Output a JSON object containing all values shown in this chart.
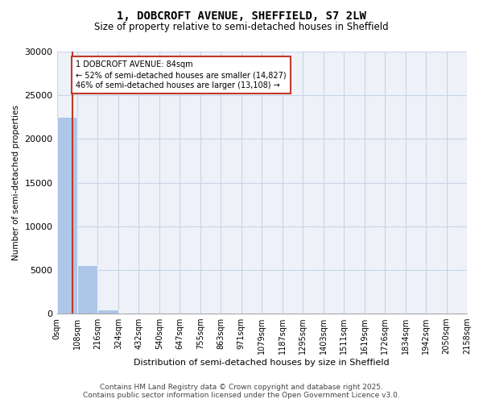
{
  "title_line1": "1, DOBCROFT AVENUE, SHEFFIELD, S7 2LW",
  "title_line2": "Size of property relative to semi-detached houses in Sheffield",
  "xlabel": "Distribution of semi-detached houses by size in Sheffield",
  "ylabel": "Number of semi-detached properties",
  "bar_color": "#aec6e8",
  "marker_color": "#c0392b",
  "annotation_text": "1 DOBCROFT AVENUE: 84sqm\n← 52% of semi-detached houses are smaller (14,827)\n46% of semi-detached houses are larger (13,108) →",
  "property_size_sqm": 84,
  "bin_width": 108,
  "bin_labels": [
    "0sqm",
    "108sqm",
    "216sqm",
    "324sqm",
    "432sqm",
    "540sqm",
    "647sqm",
    "755sqm",
    "863sqm",
    "971sqm",
    "1079sqm",
    "1187sqm",
    "1295sqm",
    "1403sqm",
    "1511sqm",
    "1619sqm",
    "1726sqm",
    "1834sqm",
    "1942sqm",
    "2050sqm",
    "2158sqm"
  ],
  "counts": [
    22500,
    5500,
    500,
    50,
    10,
    5,
    3,
    2,
    1,
    1,
    1,
    1,
    1,
    1,
    1,
    1,
    1,
    1,
    1,
    1
  ],
  "ylim": [
    0,
    30000
  ],
  "yticks": [
    0,
    5000,
    10000,
    15000,
    20000,
    25000,
    30000
  ],
  "footer_text": "Contains HM Land Registry data © Crown copyright and database right 2025.\nContains public sector information licensed under the Open Government Licence v3.0.",
  "background_color": "#eef2f8",
  "grid_color": "#c8d4e8"
}
